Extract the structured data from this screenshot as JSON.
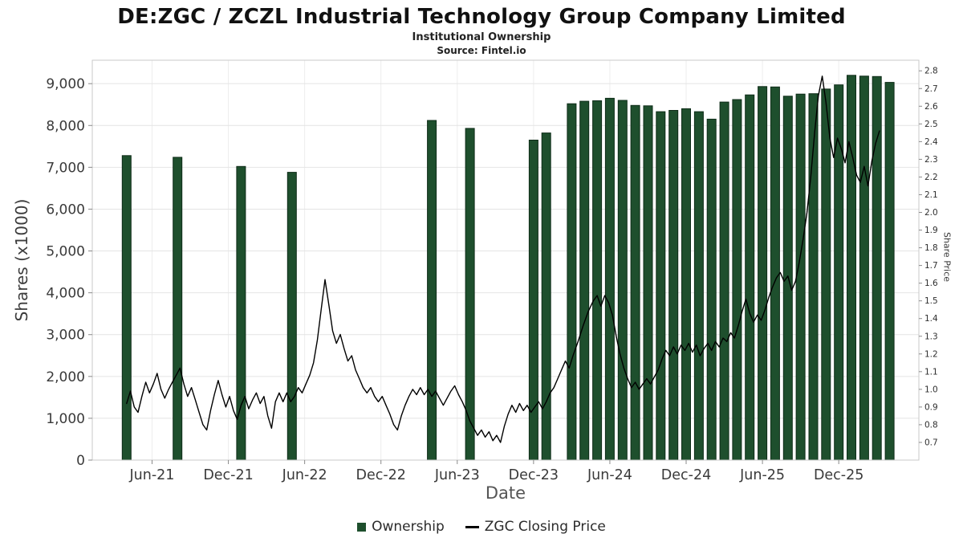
{
  "chart_data": {
    "type": "bar+line",
    "title": "DE:ZGC / ZCZL Industrial Technology Group Company Limited",
    "subtitle": "Institutional Ownership",
    "source": "Source: Fintel.io",
    "legend_position": "bottom",
    "grid": "on",
    "x_axis": {
      "label": "Date",
      "range_months": [
        0.3,
        65.3
      ],
      "ticks": [
        {
          "m": 5,
          "label": "Jun-21"
        },
        {
          "m": 11,
          "label": "Dec-21"
        },
        {
          "m": 17,
          "label": "Jun-22"
        },
        {
          "m": 23,
          "label": "Dec-22"
        },
        {
          "m": 29,
          "label": "Jun-23"
        },
        {
          "m": 35,
          "label": "Dec-23"
        },
        {
          "m": 41,
          "label": "Jun-24"
        },
        {
          "m": 47,
          "label": "Dec-24"
        },
        {
          "m": 53,
          "label": "Jun-25"
        },
        {
          "m": 59,
          "label": "Dec-25"
        }
      ]
    },
    "left_axis": {
      "label": "Shares (x1000)",
      "range": [
        0,
        9560
      ],
      "ticks": [
        0,
        1000,
        2000,
        3000,
        4000,
        5000,
        6000,
        7000,
        8000,
        9000
      ]
    },
    "right_axis": {
      "label": "Share Price",
      "range": [
        0.6,
        2.86
      ],
      "ticks": [
        0.7,
        0.8,
        0.9,
        1.0,
        1.1,
        1.2,
        1.3,
        1.4,
        1.5,
        1.6,
        1.7,
        1.8,
        1.9,
        2.0,
        2.1,
        2.2,
        2.3,
        2.4,
        2.5,
        2.6,
        2.7,
        2.8
      ]
    },
    "series": [
      {
        "name": "Ownership",
        "type": "bar",
        "color": "#1e4f2d",
        "edge_color": "#0e2c18",
        "points": [
          [
            3,
            7280
          ],
          [
            7,
            7240
          ],
          [
            12,
            7020
          ],
          [
            16,
            6880
          ],
          [
            27,
            8120
          ],
          [
            30,
            7930
          ],
          [
            35,
            7650
          ],
          [
            36,
            7820
          ],
          [
            38,
            8520
          ],
          [
            39,
            8580
          ],
          [
            40,
            8590
          ],
          [
            41,
            8650
          ],
          [
            42,
            8600
          ],
          [
            43,
            8480
          ],
          [
            44,
            8470
          ],
          [
            45,
            8330
          ],
          [
            46,
            8360
          ],
          [
            47,
            8400
          ],
          [
            48,
            8330
          ],
          [
            49,
            8150
          ],
          [
            50,
            8560
          ],
          [
            51,
            8620
          ],
          [
            52,
            8730
          ],
          [
            53,
            8930
          ],
          [
            54,
            8920
          ],
          [
            55,
            8700
          ],
          [
            56,
            8750
          ],
          [
            57,
            8760
          ],
          [
            58,
            8870
          ],
          [
            59,
            8970
          ],
          [
            60,
            9200
          ],
          [
            61,
            9180
          ],
          [
            62,
            9170
          ],
          [
            63,
            9030
          ]
        ]
      },
      {
        "name": "ZGC Closing Price",
        "type": "line",
        "color": "#000000",
        "points": [
          [
            3.0,
            0.92
          ],
          [
            3.3,
            0.99
          ],
          [
            3.6,
            0.9
          ],
          [
            3.9,
            0.87
          ],
          [
            4.2,
            0.96
          ],
          [
            4.5,
            1.04
          ],
          [
            4.8,
            0.98
          ],
          [
            5.1,
            1.03
          ],
          [
            5.4,
            1.09
          ],
          [
            5.7,
            1.0
          ],
          [
            6.0,
            0.95
          ],
          [
            6.3,
            1.0
          ],
          [
            6.6,
            1.04
          ],
          [
            6.9,
            1.08
          ],
          [
            7.2,
            1.12
          ],
          [
            7.5,
            1.03
          ],
          [
            7.8,
            0.96
          ],
          [
            8.1,
            1.01
          ],
          [
            8.4,
            0.94
          ],
          [
            8.7,
            0.87
          ],
          [
            9.0,
            0.8
          ],
          [
            9.3,
            0.77
          ],
          [
            9.6,
            0.88
          ],
          [
            9.9,
            0.97
          ],
          [
            10.2,
            1.05
          ],
          [
            10.5,
            0.97
          ],
          [
            10.8,
            0.9
          ],
          [
            11.1,
            0.96
          ],
          [
            11.4,
            0.88
          ],
          [
            11.7,
            0.83
          ],
          [
            12.0,
            0.91
          ],
          [
            12.3,
            0.96
          ],
          [
            12.6,
            0.89
          ],
          [
            12.9,
            0.94
          ],
          [
            13.2,
            0.98
          ],
          [
            13.5,
            0.92
          ],
          [
            13.8,
            0.96
          ],
          [
            14.1,
            0.85
          ],
          [
            14.4,
            0.78
          ],
          [
            14.7,
            0.93
          ],
          [
            15.0,
            0.98
          ],
          [
            15.3,
            0.93
          ],
          [
            15.6,
            0.98
          ],
          [
            15.9,
            0.93
          ],
          [
            16.2,
            0.96
          ],
          [
            16.5,
            1.01
          ],
          [
            16.8,
            0.98
          ],
          [
            17.1,
            1.03
          ],
          [
            17.4,
            1.08
          ],
          [
            17.7,
            1.15
          ],
          [
            18.0,
            1.28
          ],
          [
            18.3,
            1.45
          ],
          [
            18.6,
            1.62
          ],
          [
            18.9,
            1.48
          ],
          [
            19.2,
            1.33
          ],
          [
            19.5,
            1.26
          ],
          [
            19.8,
            1.31
          ],
          [
            20.1,
            1.23
          ],
          [
            20.4,
            1.16
          ],
          [
            20.7,
            1.19
          ],
          [
            21.0,
            1.11
          ],
          [
            21.3,
            1.06
          ],
          [
            21.6,
            1.01
          ],
          [
            21.9,
            0.98
          ],
          [
            22.2,
            1.01
          ],
          [
            22.5,
            0.96
          ],
          [
            22.8,
            0.93
          ],
          [
            23.1,
            0.96
          ],
          [
            23.4,
            0.91
          ],
          [
            23.7,
            0.86
          ],
          [
            24.0,
            0.8
          ],
          [
            24.3,
            0.77
          ],
          [
            24.6,
            0.85
          ],
          [
            24.9,
            0.91
          ],
          [
            25.2,
            0.96
          ],
          [
            25.5,
            1.0
          ],
          [
            25.8,
            0.97
          ],
          [
            26.1,
            1.01
          ],
          [
            26.4,
            0.97
          ],
          [
            26.7,
            1.0
          ],
          [
            27.0,
            0.96
          ],
          [
            27.3,
            0.99
          ],
          [
            27.6,
            0.95
          ],
          [
            27.9,
            0.91
          ],
          [
            28.2,
            0.95
          ],
          [
            28.5,
            0.99
          ],
          [
            28.8,
            1.02
          ],
          [
            29.1,
            0.97
          ],
          [
            29.4,
            0.93
          ],
          [
            29.7,
            0.88
          ],
          [
            30.0,
            0.82
          ],
          [
            30.3,
            0.78
          ],
          [
            30.6,
            0.74
          ],
          [
            30.9,
            0.77
          ],
          [
            31.2,
            0.73
          ],
          [
            31.5,
            0.76
          ],
          [
            31.8,
            0.71
          ],
          [
            32.1,
            0.74
          ],
          [
            32.4,
            0.7
          ],
          [
            32.7,
            0.79
          ],
          [
            33.0,
            0.86
          ],
          [
            33.3,
            0.91
          ],
          [
            33.6,
            0.87
          ],
          [
            33.9,
            0.92
          ],
          [
            34.2,
            0.88
          ],
          [
            34.5,
            0.91
          ],
          [
            34.8,
            0.87
          ],
          [
            35.1,
            0.9
          ],
          [
            35.4,
            0.93
          ],
          [
            35.7,
            0.89
          ],
          [
            36.0,
            0.93
          ],
          [
            36.3,
            0.98
          ],
          [
            36.6,
            1.01
          ],
          [
            36.9,
            1.06
          ],
          [
            37.2,
            1.11
          ],
          [
            37.5,
            1.16
          ],
          [
            37.8,
            1.12
          ],
          [
            38.1,
            1.19
          ],
          [
            38.5,
            1.27
          ],
          [
            38.9,
            1.36
          ],
          [
            39.3,
            1.44
          ],
          [
            39.7,
            1.5
          ],
          [
            40.0,
            1.53
          ],
          [
            40.3,
            1.47
          ],
          [
            40.6,
            1.53
          ],
          [
            40.9,
            1.49
          ],
          [
            41.2,
            1.42
          ],
          [
            41.5,
            1.3
          ],
          [
            41.8,
            1.2
          ],
          [
            42.1,
            1.12
          ],
          [
            42.4,
            1.06
          ],
          [
            42.7,
            1.01
          ],
          [
            43.0,
            1.04
          ],
          [
            43.3,
            1.0
          ],
          [
            43.6,
            1.03
          ],
          [
            43.9,
            1.06
          ],
          [
            44.2,
            1.03
          ],
          [
            44.5,
            1.07
          ],
          [
            44.8,
            1.11
          ],
          [
            45.1,
            1.17
          ],
          [
            45.4,
            1.22
          ],
          [
            45.7,
            1.19
          ],
          [
            46.0,
            1.24
          ],
          [
            46.3,
            1.2
          ],
          [
            46.6,
            1.25
          ],
          [
            46.9,
            1.22
          ],
          [
            47.2,
            1.26
          ],
          [
            47.5,
            1.21
          ],
          [
            47.8,
            1.25
          ],
          [
            48.1,
            1.19
          ],
          [
            48.4,
            1.23
          ],
          [
            48.7,
            1.26
          ],
          [
            49.0,
            1.22
          ],
          [
            49.3,
            1.27
          ],
          [
            49.6,
            1.24
          ],
          [
            49.9,
            1.29
          ],
          [
            50.2,
            1.27
          ],
          [
            50.5,
            1.32
          ],
          [
            50.8,
            1.29
          ],
          [
            51.1,
            1.36
          ],
          [
            51.4,
            1.44
          ],
          [
            51.7,
            1.51
          ],
          [
            52.0,
            1.43
          ],
          [
            52.3,
            1.38
          ],
          [
            52.6,
            1.42
          ],
          [
            52.9,
            1.39
          ],
          [
            53.2,
            1.45
          ],
          [
            53.5,
            1.52
          ],
          [
            53.8,
            1.58
          ],
          [
            54.1,
            1.63
          ],
          [
            54.4,
            1.66
          ],
          [
            54.7,
            1.61
          ],
          [
            55.0,
            1.64
          ],
          [
            55.3,
            1.56
          ],
          [
            55.6,
            1.61
          ],
          [
            55.9,
            1.72
          ],
          [
            56.2,
            1.85
          ],
          [
            56.5,
            2.0
          ],
          [
            56.8,
            2.2
          ],
          [
            57.1,
            2.45
          ],
          [
            57.4,
            2.66
          ],
          [
            57.7,
            2.77
          ],
          [
            58.0,
            2.62
          ],
          [
            58.3,
            2.42
          ],
          [
            58.6,
            2.31
          ],
          [
            58.9,
            2.42
          ],
          [
            59.2,
            2.36
          ],
          [
            59.5,
            2.28
          ],
          [
            59.8,
            2.4
          ],
          [
            60.1,
            2.31
          ],
          [
            60.4,
            2.21
          ],
          [
            60.7,
            2.17
          ],
          [
            61.0,
            2.26
          ],
          [
            61.3,
            2.15
          ],
          [
            61.6,
            2.29
          ],
          [
            61.9,
            2.39
          ],
          [
            62.2,
            2.46
          ]
        ]
      }
    ]
  }
}
